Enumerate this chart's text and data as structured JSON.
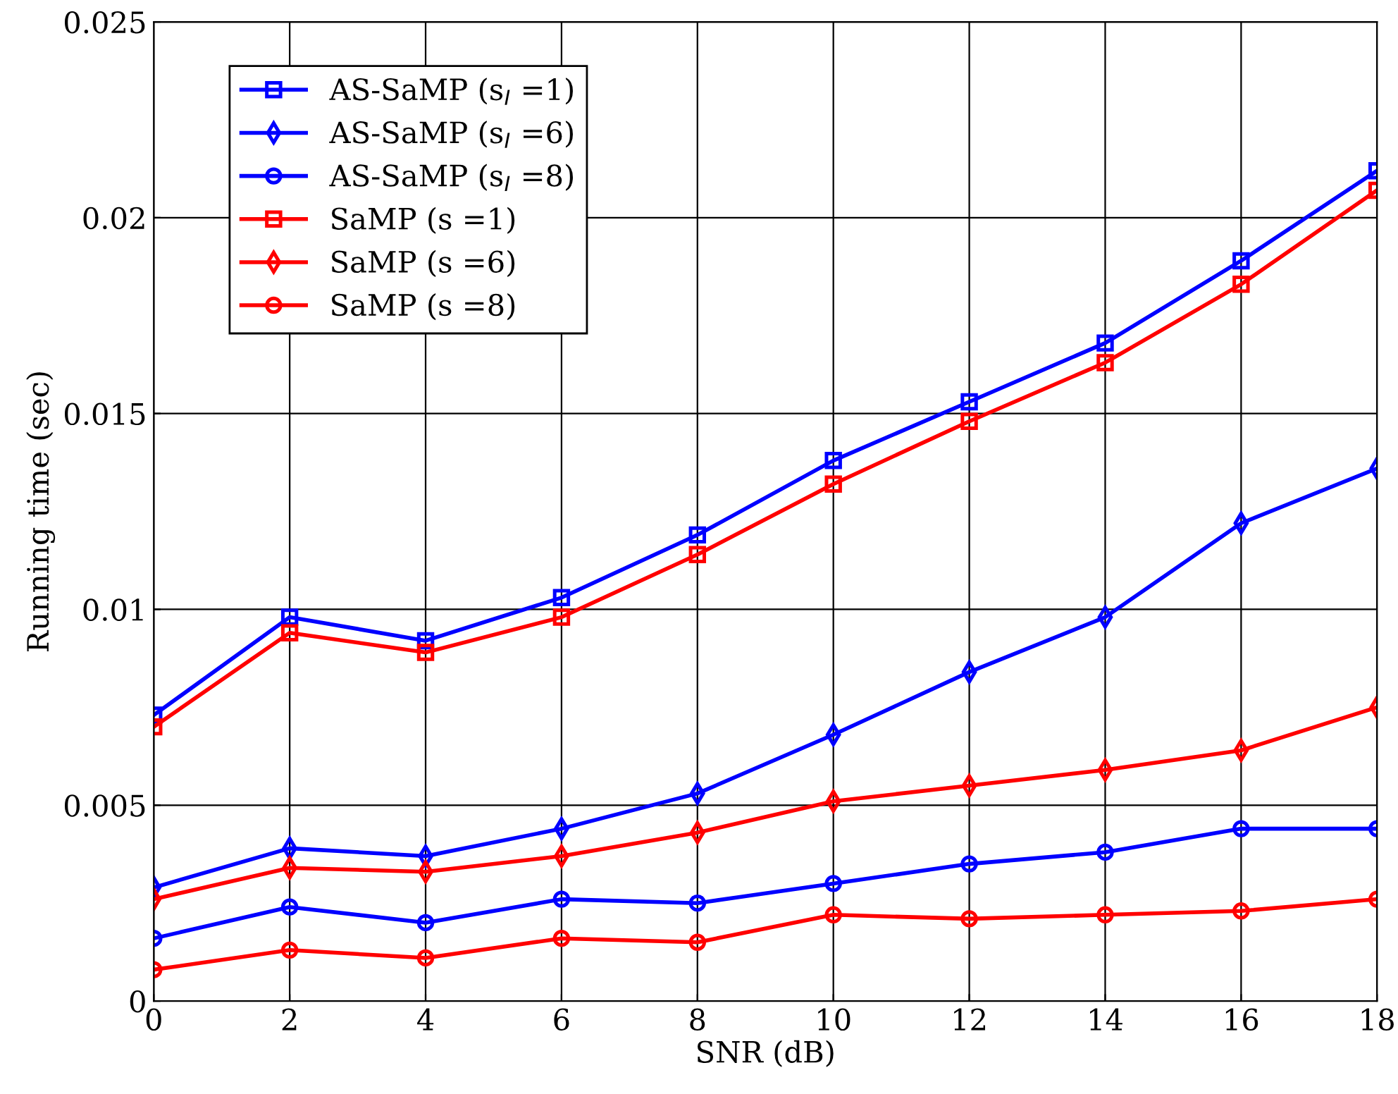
{
  "chart_data": {
    "type": "line",
    "xlabel": "SNR (dB)",
    "ylabel": "Running time (sec)",
    "x": [
      0,
      2,
      4,
      6,
      8,
      10,
      12,
      14,
      16,
      18
    ],
    "series": [
      {
        "name": "AS-SaMP (s$_{I}$ =1)",
        "color": "#0000ff",
        "marker": "square",
        "values": [
          0.0073,
          0.0098,
          0.0092,
          0.0103,
          0.0119,
          0.0138,
          0.0153,
          0.0168,
          0.0189,
          0.0212
        ]
      },
      {
        "name": "AS-SaMP (s$_{I}$ =6)",
        "color": "#0000ff",
        "marker": "diamond",
        "values": [
          0.0029,
          0.0039,
          0.0037,
          0.0044,
          0.0053,
          0.0068,
          0.0084,
          0.0098,
          0.0122,
          0.0136
        ]
      },
      {
        "name": "AS-SaMP (s$_{I}$ =8)",
        "color": "#0000ff",
        "marker": "circle",
        "values": [
          0.0016,
          0.0024,
          0.002,
          0.0026,
          0.0025,
          0.003,
          0.0035,
          0.0038,
          0.0044,
          0.0044
        ]
      },
      {
        "name": "SaMP (s =1)",
        "color": "#ff0000",
        "marker": "square",
        "values": [
          0.007,
          0.0094,
          0.0089,
          0.0098,
          0.0114,
          0.0132,
          0.0148,
          0.0163,
          0.0183,
          0.0207
        ]
      },
      {
        "name": "SaMP (s =6)",
        "color": "#ff0000",
        "marker": "diamond",
        "values": [
          0.0026,
          0.0034,
          0.0033,
          0.0037,
          0.0043,
          0.0051,
          0.0055,
          0.0059,
          0.0064,
          0.0075
        ]
      },
      {
        "name": "SaMP (s =8)",
        "color": "#ff0000",
        "marker": "circle",
        "values": [
          0.0008,
          0.0013,
          0.0011,
          0.0016,
          0.0015,
          0.0022,
          0.0021,
          0.0022,
          0.0023,
          0.0026
        ]
      }
    ],
    "xlim": [
      0,
      18
    ],
    "xticks": [
      0,
      2,
      4,
      6,
      8,
      10,
      12,
      14,
      16,
      18
    ],
    "ylim": [
      0,
      0.025
    ],
    "yticks": [
      0,
      0.005,
      0.01,
      0.015,
      0.02,
      0.025
    ],
    "grid": true,
    "legend": "top left",
    "line_style": "solid"
  }
}
